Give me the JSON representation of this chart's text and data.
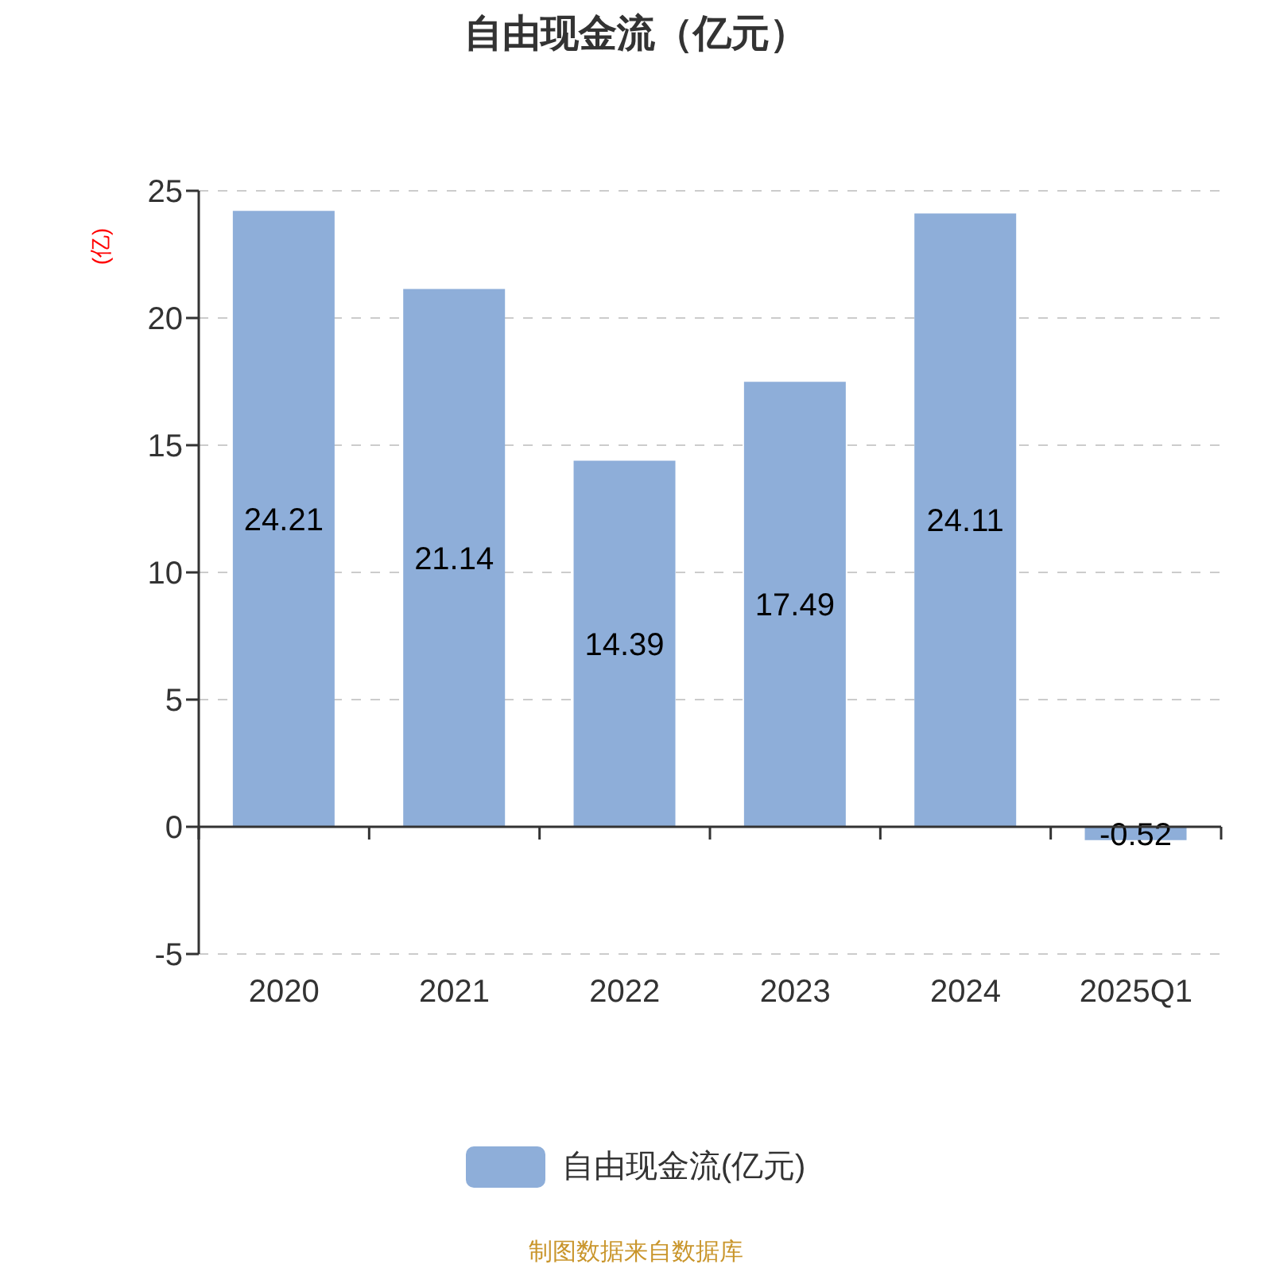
{
  "chart_data": {
    "type": "bar",
    "title": "自由现金流（亿元）",
    "ylabel": "(亿)",
    "categories": [
      "2020",
      "2021",
      "2022",
      "2023",
      "2024",
      "2025Q1"
    ],
    "series": [
      {
        "name": "自由现金流(亿元)",
        "color": "#8eaed9",
        "values": [
          24.21,
          21.14,
          14.39,
          17.49,
          24.11,
          -0.52
        ]
      }
    ],
    "ylim": [
      -5,
      25
    ],
    "yticks": [
      -5,
      0,
      5,
      10,
      15,
      20,
      25
    ],
    "grid": "y",
    "legend": "bottom",
    "data_labels": true,
    "annotations": [
      "制图数据来自数据库"
    ]
  }
}
